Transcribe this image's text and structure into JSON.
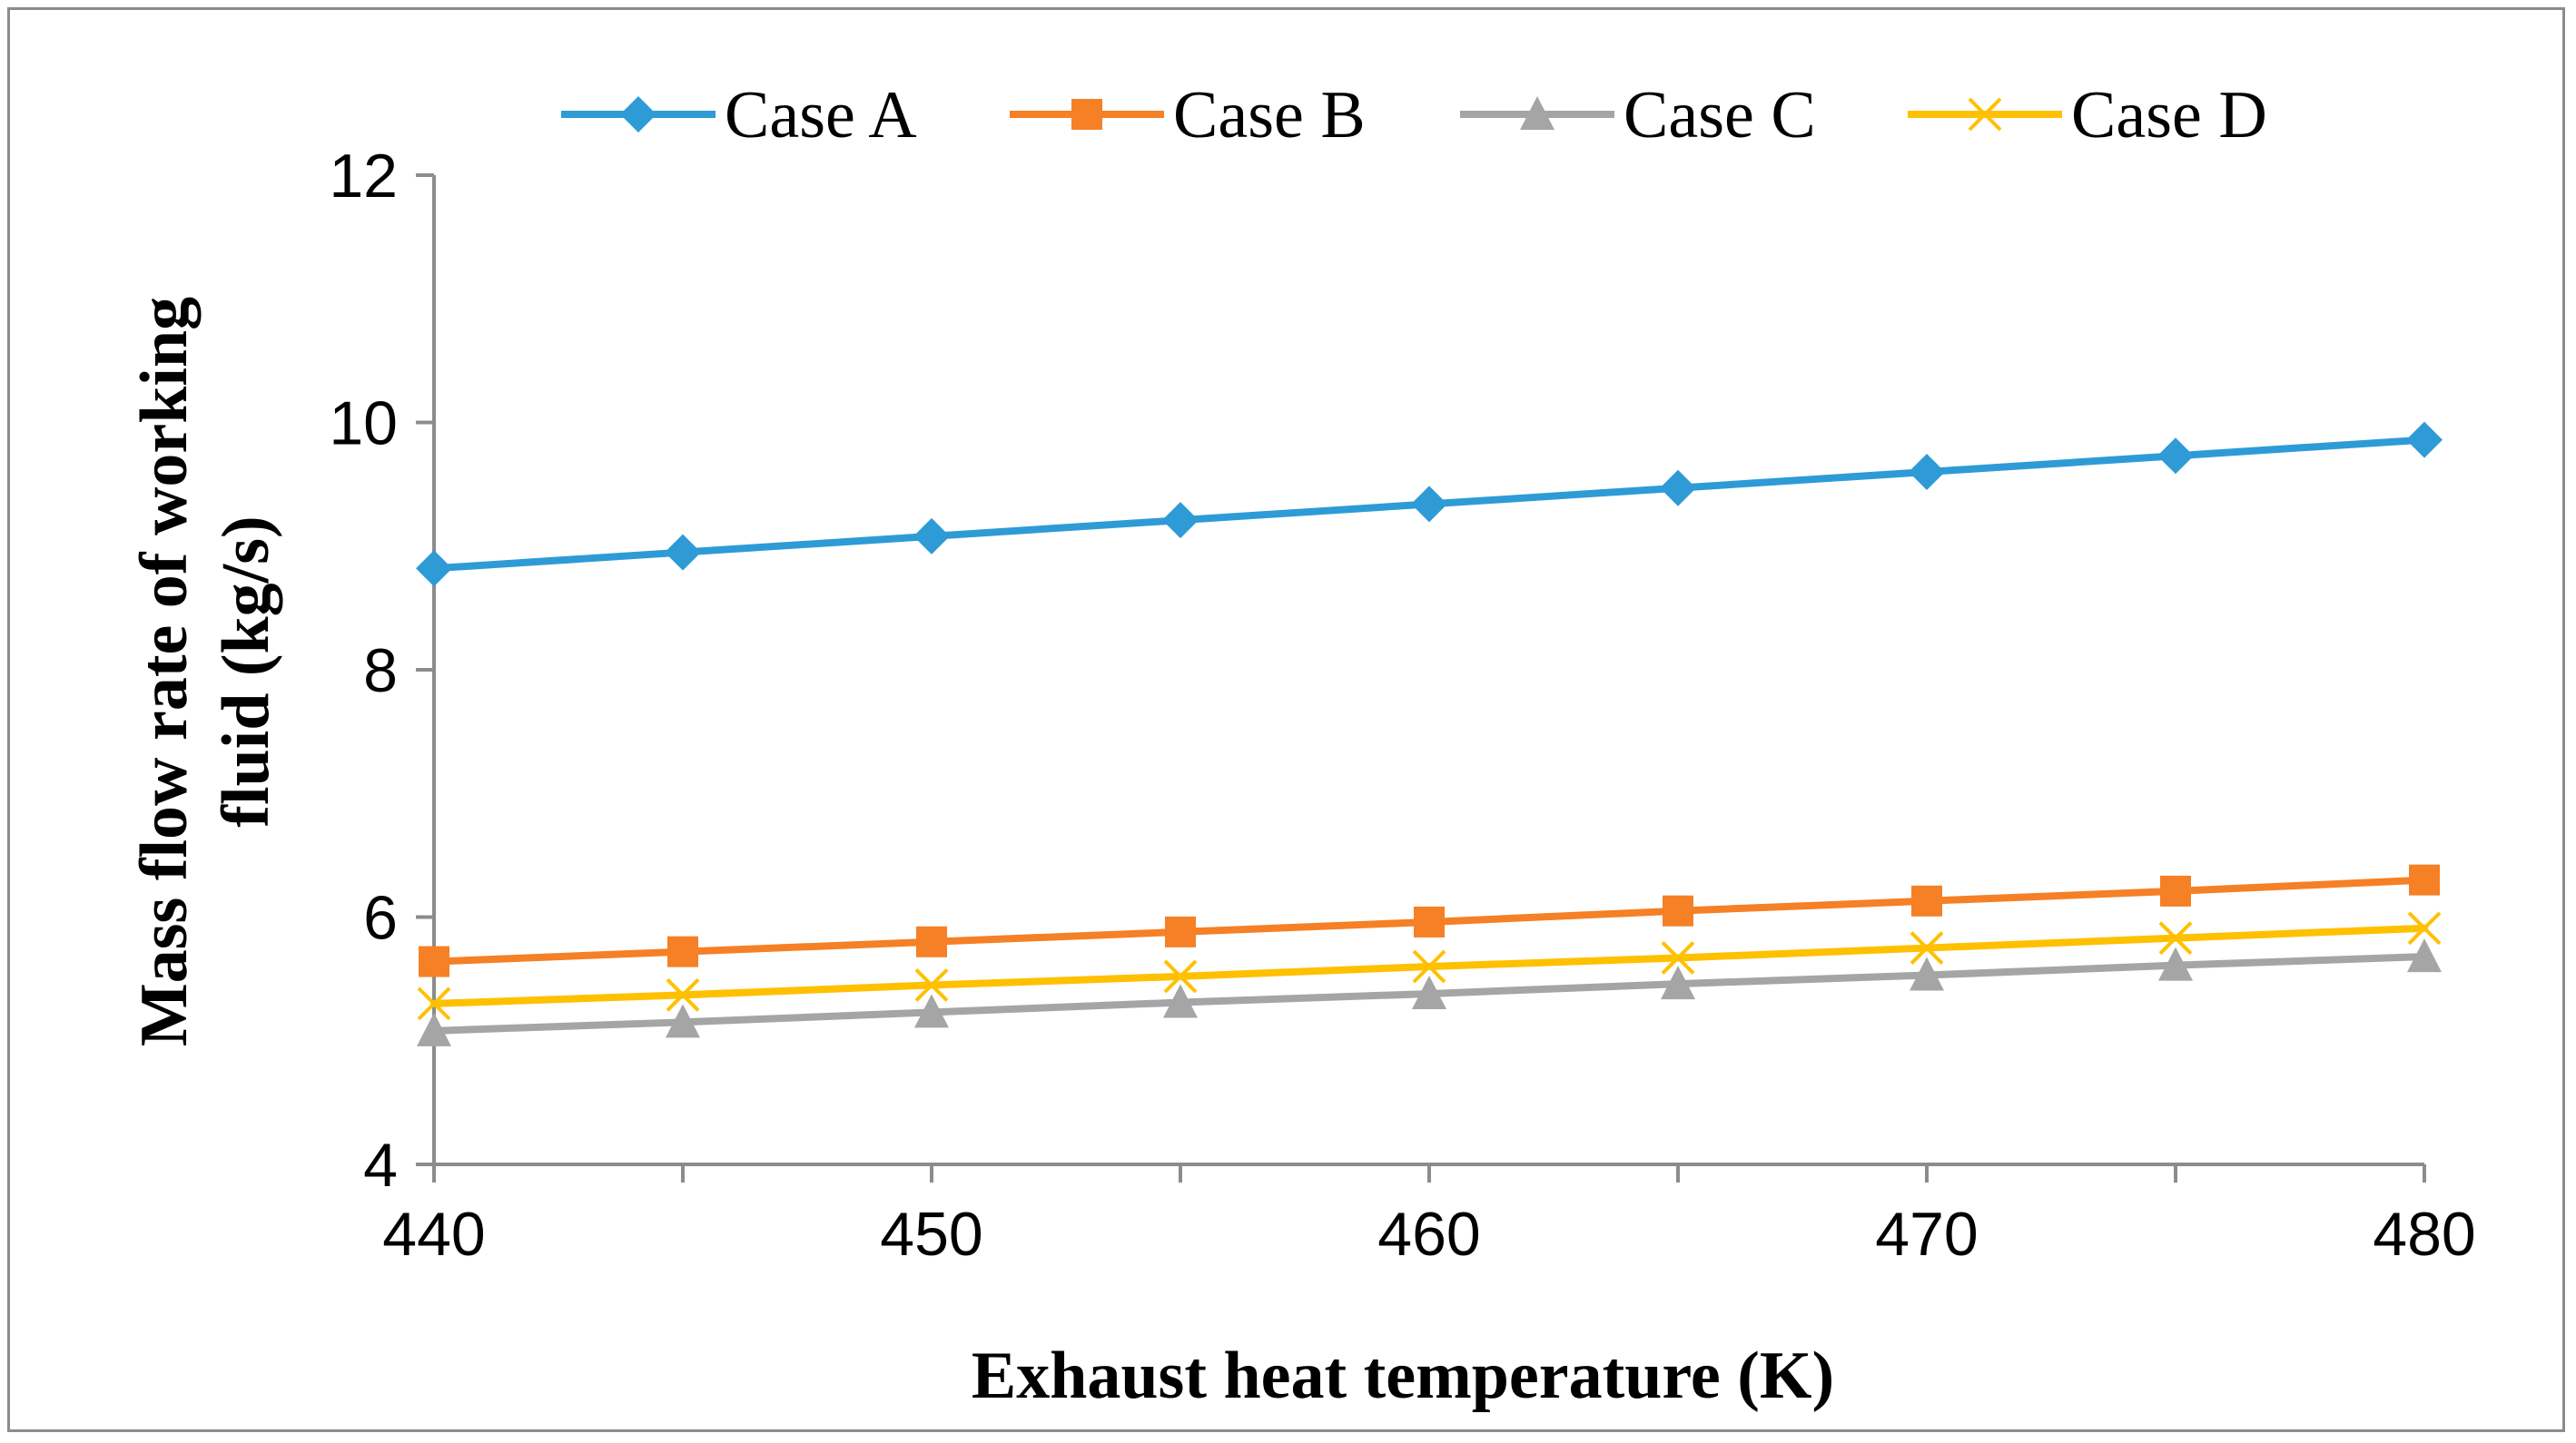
{
  "chart_data": {
    "type": "line",
    "title": "",
    "xlabel": "Exhaust heat temperature (K)",
    "ylabel_lines": [
      "Mass flow rate of working",
      "fluid  (kg/s)"
    ],
    "x": [
      440,
      445,
      450,
      455,
      460,
      465,
      470,
      475,
      480
    ],
    "xlim": [
      440,
      480
    ],
    "ylim": [
      4,
      12
    ],
    "xticks": [
      440,
      450,
      460,
      470,
      480
    ],
    "xtick_labels": [
      "440",
      "450",
      "460",
      "470",
      "480"
    ],
    "yticks": [
      4,
      6,
      8,
      10,
      12
    ],
    "ytick_labels": [
      "4",
      "6",
      "8",
      "10",
      "12"
    ],
    "grid": false,
    "legend_position": "top",
    "series": [
      {
        "name": "Case A",
        "color": "#2E9BD6",
        "marker": "diamond",
        "values": [
          8.82,
          8.95,
          9.08,
          9.21,
          9.34,
          9.47,
          9.6,
          9.73,
          9.86
        ]
      },
      {
        "name": "Case B",
        "color": "#F58025",
        "marker": "square",
        "values": [
          5.64,
          5.72,
          5.8,
          5.88,
          5.96,
          6.05,
          6.13,
          6.21,
          6.3
        ]
      },
      {
        "name": "Case C",
        "color": "#A5A5A5",
        "marker": "triangle",
        "values": [
          5.08,
          5.15,
          5.23,
          5.31,
          5.38,
          5.46,
          5.53,
          5.61,
          5.68
        ]
      },
      {
        "name": "Case D",
        "color": "#FFC000",
        "marker": "x",
        "values": [
          5.3,
          5.37,
          5.45,
          5.52,
          5.6,
          5.67,
          5.75,
          5.83,
          5.91
        ]
      }
    ]
  }
}
